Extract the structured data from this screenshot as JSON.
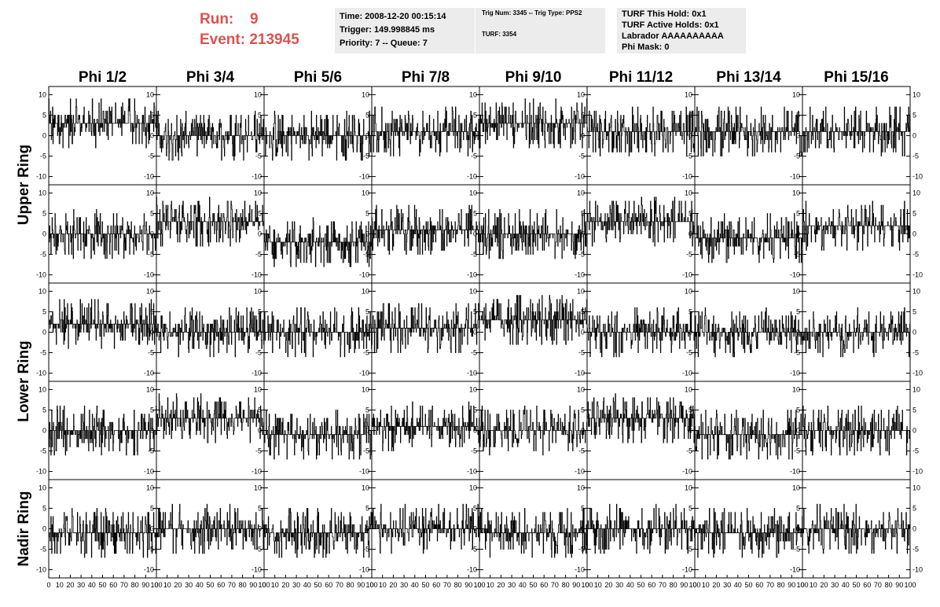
{
  "header": {
    "run_label": "Run:",
    "run_value": "9",
    "event_label": "Event:",
    "event_value": "213945",
    "time": "Time: 2008-12-20 00:15:14",
    "trigger": "Trigger: 149.998845 ms",
    "priority": "Priority: 7 -- Queue: 7",
    "trig_num": "Trig Num: 3345 -- Trig Type: PPS2",
    "turf": "TURF: 3354",
    "turf_this_hold": "TURF This Hold: 0x1",
    "turf_active_holds": "TURF Active Holds: 0x1",
    "labrador": "Labrador AAAAAAAAAA",
    "phi_mask": "Phi Mask: 0",
    "run_color": "#d9534f",
    "box_color": "#ececec"
  },
  "chart_data": {
    "type": "line",
    "layout": "grid of 5 rows x 8 columns of waveform panels",
    "columns": [
      "Phi 1/2",
      "Phi 3/4",
      "Phi 5/6",
      "Phi 7/8",
      "Phi 9/10",
      "Phi 11/12",
      "Phi 13/14",
      "Phi 15/16"
    ],
    "rows": [
      {
        "label": "Upper Ring",
        "panels": 2
      },
      {
        "label": "Lower Ring",
        "panels": 2
      },
      {
        "label": "Nadir Ring",
        "panels": 1
      }
    ],
    "xlim": [
      0,
      100
    ],
    "ylim": [
      -12,
      12
    ],
    "x_ticks": [
      0,
      10,
      20,
      30,
      40,
      50,
      60,
      70,
      80,
      90,
      100
    ],
    "x_tick_labels": [
      "0",
      "10",
      "20",
      "30",
      "40",
      "50",
      "60",
      "70",
      "80",
      "90",
      "100"
    ],
    "y_ticks": [
      10,
      5,
      0,
      -5,
      -10
    ],
    "y_tick_labels": [
      "10",
      "5",
      "0",
      "-5",
      "-10"
    ],
    "samples_per_trace": 260,
    "panel_baselines": [
      [
        3,
        0,
        0,
        1,
        3,
        1,
        1,
        1
      ],
      [
        0,
        3,
        -2,
        1,
        0,
        3,
        -1,
        2
      ],
      [
        2,
        0,
        0,
        1,
        3,
        0,
        0,
        0
      ],
      [
        0,
        3,
        -1,
        1,
        0,
        3,
        -1,
        0
      ],
      [
        -1,
        0,
        -1,
        0,
        -1,
        0,
        -1,
        0
      ]
    ],
    "line_color": "#000000",
    "grid": false
  }
}
